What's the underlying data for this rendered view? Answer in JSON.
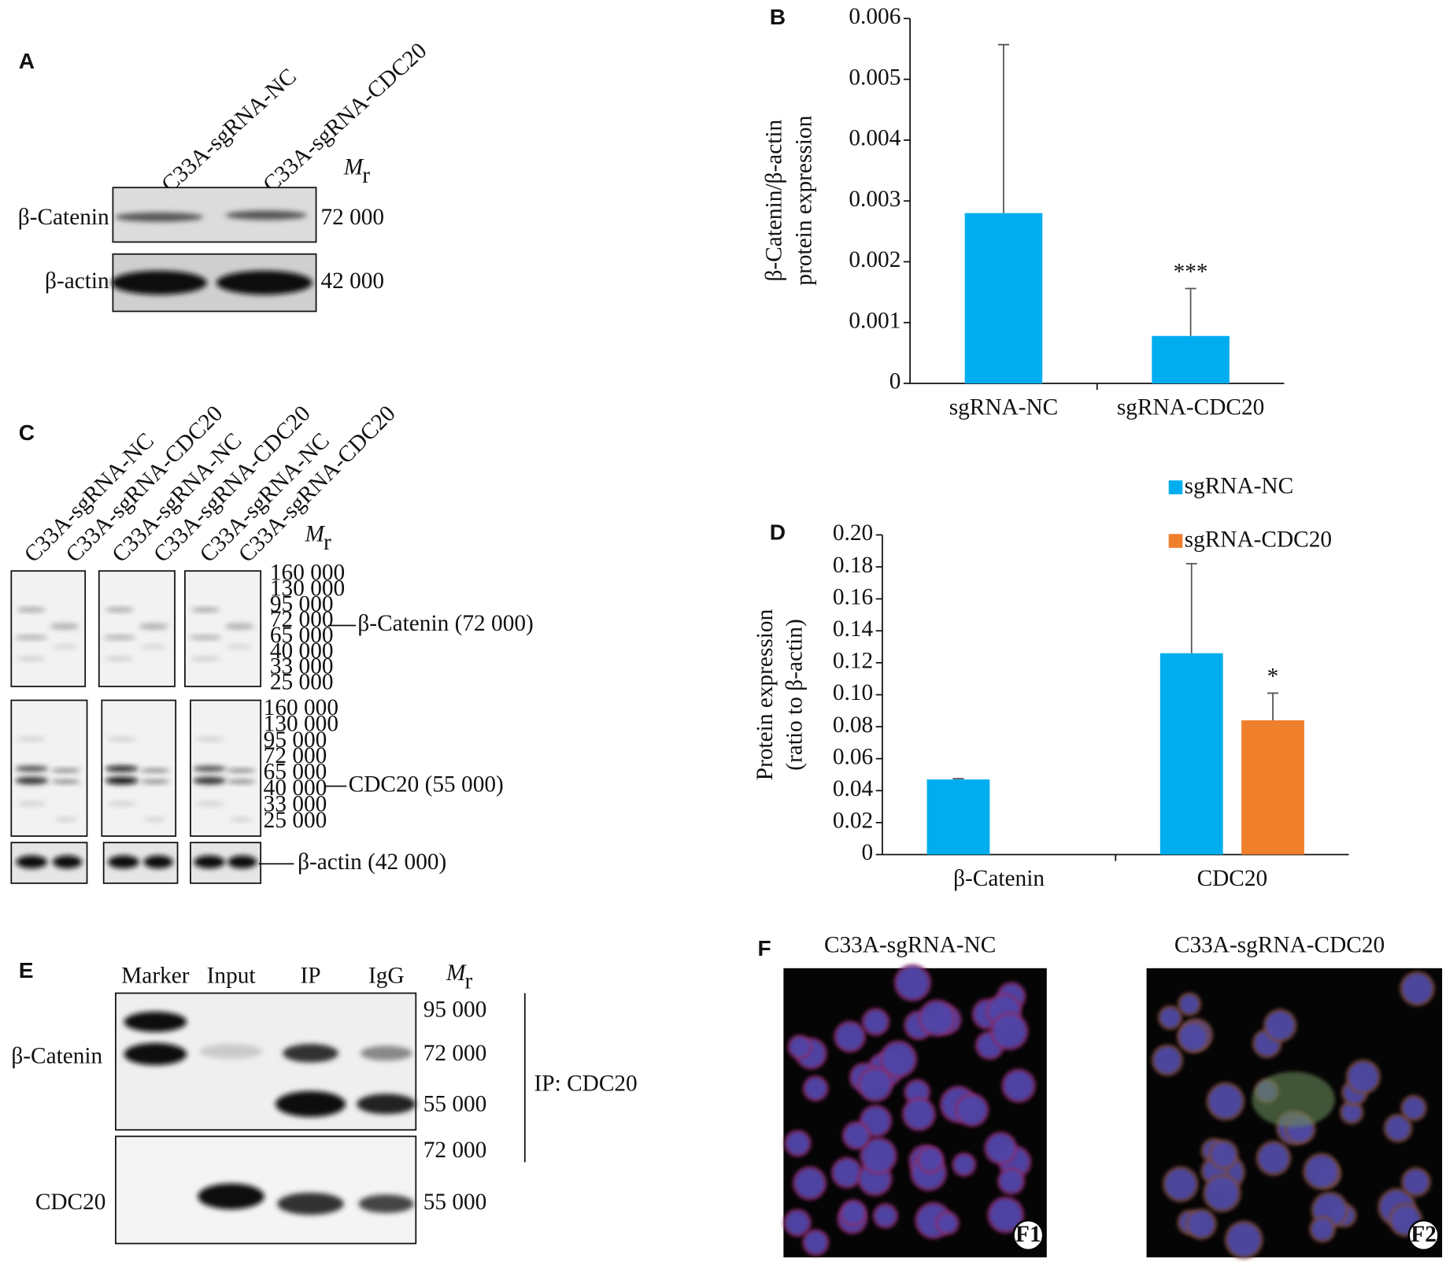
{
  "chart_data": [
    {
      "type": "bar",
      "label": "B",
      "ylabel": [
        "β-Catenin/β-actin",
        "protein expression"
      ],
      "categories": [
        "sgRNA-NC",
        "sgRNA-CDC20"
      ],
      "values": [
        0.0028,
        0.00078
      ],
      "errors": [
        0.00277,
        0.00078
      ],
      "color": "#00aeef",
      "annotations": [
        "***"
      ],
      "ylim": [
        0,
        0.006
      ],
      "yticks": [
        0,
        0.001,
        0.002,
        0.003,
        0.004,
        0.005,
        0.006
      ]
    },
    {
      "type": "bar",
      "label": "D",
      "ylabel": [
        "Protein expression",
        "(ratio to β-actin)"
      ],
      "categories": [
        "β-Catenin",
        "CDC20"
      ],
      "series": [
        {
          "name": "sgRNA-NC",
          "color": "#00aeef",
          "values": [
            0.047,
            0.126
          ],
          "errors": [
            0.0005,
            0.056
          ]
        },
        {
          "name": "sgRNA-CDC20",
          "color": "#f07f2c",
          "values": [
            null,
            0.084
          ],
          "errors": [
            null,
            0.017
          ]
        }
      ],
      "annotations": [
        "*"
      ],
      "legend": "top-right",
      "ylim": [
        0,
        0.2
      ],
      "yticks": [
        0,
        0.02,
        0.04,
        0.06,
        0.08,
        {
          "value": 0.1,
          "label": "0.10"
        },
        0.12,
        0.14,
        0.16,
        0.18,
        {
          "value": 0.2,
          "label": "0.20"
        }
      ]
    }
  ],
  "panel_a": {
    "label": "A",
    "lanes": [
      "C33A-sgRNA-NC",
      "C33A-sgRNA-CDC20"
    ],
    "mr": {
      "symbol": "M",
      "subscript": "r"
    },
    "rows": [
      {
        "protein": "β-Catenin",
        "mass": "72 000"
      },
      {
        "protein": "β-actin",
        "mass": "42 000"
      }
    ]
  },
  "panel_c": {
    "label": "C",
    "lanes": [
      "C33A-sgRNA-NC",
      "C33A-sgRNA-CDC20",
      "C33A-sgRNA-NC",
      "C33A-sgRNA-CDC20",
      "C33A-sgRNA-NC",
      "C33A-sgRNA-CDC20"
    ],
    "mr": {
      "symbol": "M",
      "subscript": "r"
    },
    "ladder_top": [
      "160 000",
      "130 000",
      "95 000",
      "72 000",
      "65 000",
      "40 000",
      "33 000",
      "25 000"
    ],
    "ladder_middle": [
      "160 000",
      "130 000",
      "95 000",
      "72 000",
      "65 000",
      "40 000",
      "33 000",
      "25 000"
    ],
    "targets": [
      "β-Catenin (72 000)",
      "CDC20 (55 000)",
      "β-actin (42 000)"
    ]
  },
  "panel_e": {
    "label": "E",
    "columns": [
      "Marker",
      "Input",
      "IP",
      "IgG"
    ],
    "mr": {
      "symbol": "M",
      "subscript": "r"
    },
    "proteins": [
      "β-Catenin",
      "CDC20"
    ],
    "masses": [
      "95 000",
      "72 000",
      "55 000",
      "72 000",
      "55 000"
    ],
    "note": "IP: CDC20"
  },
  "panel_f": {
    "label": "F",
    "images": [
      {
        "title": "C33A-sgRNA-NC",
        "badge": "F1"
      },
      {
        "title": "C33A-sgRNA-CDC20",
        "badge": "F2"
      }
    ]
  }
}
